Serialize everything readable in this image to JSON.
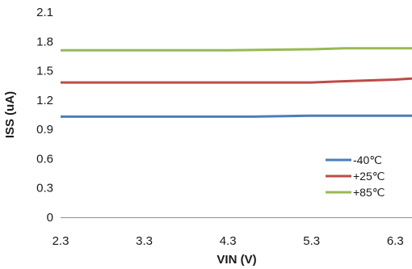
{
  "chart_data": {
    "type": "line",
    "title": "",
    "xlabel": "VIN (V)",
    "ylabel": "ISS (uA)",
    "xlim": [
      2.3,
      6.5
    ],
    "ylim": [
      0,
      2.1
    ],
    "x_ticks": [
      "2.3",
      "3.3",
      "4.3",
      "5.3",
      "6.3"
    ],
    "y_ticks": [
      "0",
      "0.3",
      "0.6",
      "0.9",
      "1.2",
      "1.5",
      "1.8",
      "2.1"
    ],
    "grid": false,
    "legend_position": "bottom-right",
    "series": [
      {
        "name": "-40℃",
        "color": "#4a7ebb",
        "x": [
          2.3,
          3.3,
          4.3,
          4.6,
          5.3,
          6.3,
          6.5
        ],
        "y": [
          1.03,
          1.03,
          1.03,
          1.03,
          1.04,
          1.04,
          1.04
        ]
      },
      {
        "name": "+25℃",
        "color": "#be4b48",
        "x": [
          2.3,
          3.3,
          4.3,
          5.3,
          5.6,
          6.3,
          6.5
        ],
        "y": [
          1.38,
          1.38,
          1.38,
          1.38,
          1.39,
          1.41,
          1.42
        ]
      },
      {
        "name": "+85℃",
        "color": "#98b954",
        "x": [
          2.3,
          3.3,
          4.0,
          4.3,
          5.3,
          5.7,
          6.3,
          6.5
        ],
        "y": [
          1.71,
          1.71,
          1.71,
          1.71,
          1.72,
          1.73,
          1.73,
          1.73
        ]
      }
    ]
  }
}
